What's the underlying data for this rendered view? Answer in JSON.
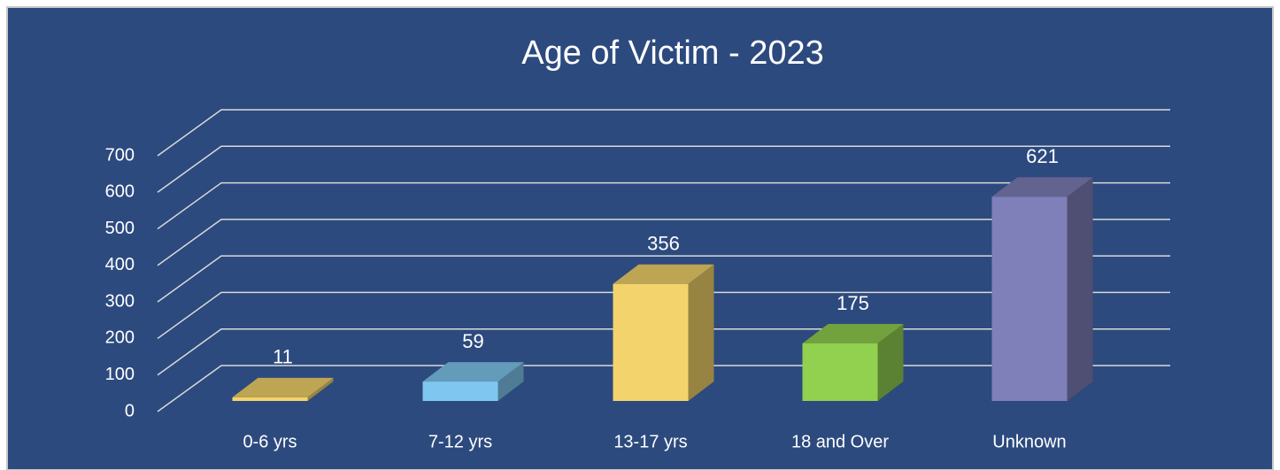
{
  "chart_data": {
    "type": "bar3d",
    "title": "Age of Victim - 2023",
    "categories": [
      "0-6 yrs",
      "7-12 yrs",
      "13-17 yrs",
      "18 and Over",
      "Unknown"
    ],
    "values": [
      11,
      59,
      356,
      175,
      621
    ],
    "colors": [
      "#f3d36b",
      "#7fc7f0",
      "#f3d36b",
      "#92d050",
      "#7f7fb9"
    ],
    "ylim": [
      0,
      700
    ],
    "yticks": [
      0,
      100,
      200,
      300,
      400,
      500,
      600,
      700
    ],
    "grid": true
  }
}
